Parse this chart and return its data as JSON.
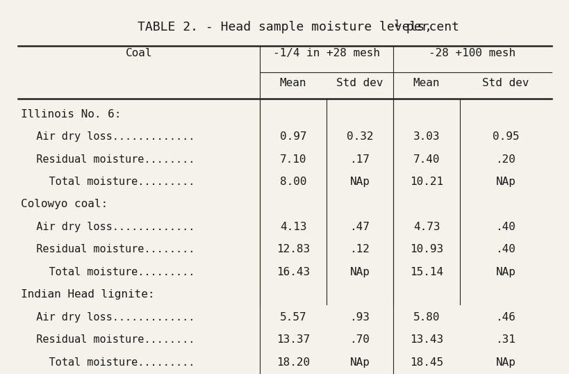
{
  "title": "TABLE 2. - Head sample moisture levels,¹ percent",
  "col_header_row1": [
    "Coal",
    "-1/4 in +28 mesh",
    "-28 +100 mesh"
  ],
  "col_header_row2": [
    "",
    "Mean",
    "Std dev",
    "Mean",
    "Std dev"
  ],
  "sections": [
    {
      "header": "Illinois No. 6:",
      "rows": [
        {
          "label": "  Air dry loss.............",
          "vals": [
            "0.97",
            "0.32",
            "3.03",
            "0.95"
          ]
        },
        {
          "label": "  Residual moisture........",
          "vals": [
            "7.10",
            ".17",
            "7.40",
            ".20"
          ]
        },
        {
          "label": "    Total moisture.........",
          "vals": [
            "8.00",
            "NAp",
            "10.21",
            "NAp"
          ]
        }
      ]
    },
    {
      "header": "Colowyo coal:",
      "rows": [
        {
          "label": "  Air dry loss.............",
          "vals": [
            "4.13",
            ".47",
            "4.73",
            ".40"
          ]
        },
        {
          "label": "  Residual moisture........",
          "vals": [
            "12.83",
            ".12",
            "10.93",
            ".40"
          ]
        },
        {
          "label": "    Total moisture.........",
          "vals": [
            "16.43",
            "NAp",
            "15.14",
            "NAp"
          ]
        }
      ]
    },
    {
      "header": "Indian Head lignite:",
      "rows": [
        {
          "label": "  Air dry loss.............",
          "vals": [
            "5.57",
            ".93",
            "5.80",
            ".46"
          ]
        },
        {
          "label": "  Residual moisture........",
          "vals": [
            "13.37",
            ".70",
            "13.43",
            ".31"
          ]
        },
        {
          "label": "    Total moisture.........",
          "vals": [
            "18.20",
            "NAp",
            "18.45",
            "NAp"
          ]
        }
      ]
    }
  ],
  "bg_color": "#f5f2eb",
  "text_color": "#1a1a1a",
  "font_size": 11.5,
  "title_font_size": 13,
  "font_family": "DejaVu Sans Mono"
}
